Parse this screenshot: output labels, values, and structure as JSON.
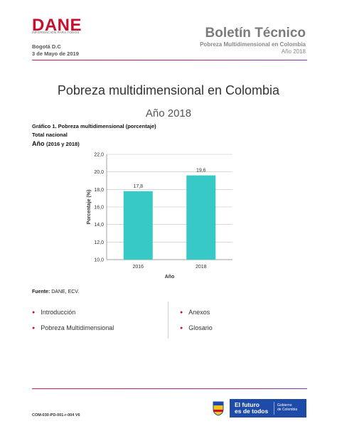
{
  "header": {
    "logo": "DANE",
    "logo_subtitle": "INFORMACIÓN PARA TODOS",
    "city": "Bogotá D.C",
    "date": "3 de Mayo de 2019",
    "bulletin_title": "Boletín Técnico",
    "bulletin_subtitle": "Pobreza Multidimensional en Colombia",
    "bulletin_year": "Año 2018"
  },
  "main": {
    "title": "Pobreza multidimensional en Colombia",
    "year": "Año 2018",
    "graph_title": "Gráfico 1. Pobreza multidimensional (porcentaje)",
    "graph_scope": "Total nacional",
    "graph_year_label": "Año",
    "graph_year_range": "(2016 y 2018)"
  },
  "chart_data": {
    "type": "bar",
    "categories": [
      "2016",
      "2018"
    ],
    "values": [
      17.8,
      19.6
    ],
    "value_labels": [
      "17,8",
      "19,6"
    ],
    "xlabel": "Año",
    "ylabel": "Porcentaje (%)",
    "ylim": [
      10,
      22
    ],
    "yticks": [
      "10,0",
      "12,0",
      "14,0",
      "16,0",
      "18,0",
      "20,0",
      "22,0"
    ],
    "bar_color": "#37c9c6"
  },
  "source": {
    "label": "Fuente:",
    "value": "DANE, ECV."
  },
  "index": {
    "left": [
      "Introducción",
      "Pobreza Multidimensional"
    ],
    "right": [
      "Anexos",
      "Glosario"
    ]
  },
  "footer": {
    "code": "COM-030-PD-001-r-004 V6",
    "gov_slogan_1": "El futuro",
    "gov_slogan_2": "es de todos",
    "gov_name_1": "Gobierno",
    "gov_name_2": "de Colombia"
  },
  "colors": {
    "brand": "#c8102e",
    "accent_purple": "#8e2fb4",
    "bar": "#37c9c6",
    "gov_blue": "#1f4ba8"
  }
}
